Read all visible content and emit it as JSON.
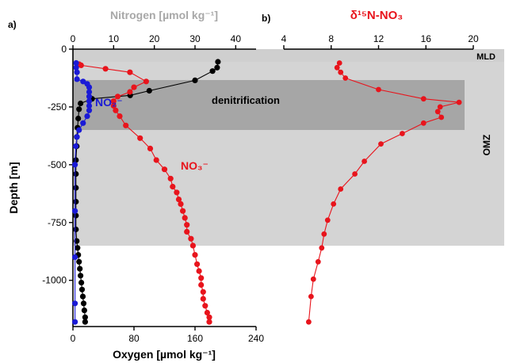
{
  "panel_a": {
    "label": "a)",
    "top_axis_title": "Nitrogen [µmol kg⁻¹]",
    "bottom_axis_title": "Oxygen [µmol kg⁻¹]",
    "y_axis_title": "Depth [m]",
    "region_labels": {
      "mld": "MLD",
      "denitrification": "denitrification",
      "omz": "OMZ"
    },
    "series_labels": {
      "no2": "NO₂⁻",
      "no3": "NO₃⁻"
    }
  },
  "panel_b": {
    "label": "b)",
    "top_axis_title": "δ¹⁵N-NO₃"
  },
  "colors": {
    "oxygen": "#000000",
    "nitrate": "#e8141c",
    "nitrite": "#1a1ad6",
    "delta15n": "#e8141c",
    "axis_title_nitrogen": "#a8a8a8",
    "omz_band": "#d4d4d4",
    "denitrification_band": "#a6a6a6"
  },
  "chart_data": [
    {
      "type": "line",
      "panel": "a",
      "y_axis": {
        "label": "Depth [m]",
        "range": [
          -1200,
          0
        ],
        "ticks": [
          0,
          -250,
          -500,
          -750,
          -1000
        ],
        "tick_labels": [
          "0",
          "-250",
          "-500",
          "-750",
          "-1000"
        ]
      },
      "x_axis_top": {
        "label": "Nitrogen [µmol kg⁻¹]",
        "range": [
          0,
          45
        ],
        "ticks": [
          0,
          10,
          20,
          30,
          40
        ],
        "tick_labels": [
          "0",
          "10",
          "20",
          "30",
          "40"
        ]
      },
      "x_axis_bottom": {
        "label": "Oxygen [µmol kg⁻¹]",
        "range": [
          0,
          240
        ],
        "ticks": [
          0,
          80,
          160,
          240
        ],
        "tick_labels": [
          "0",
          "80",
          "160",
          "240"
        ]
      },
      "bands": [
        {
          "label": "MLD",
          "depth_range": [
            -10,
            -60
          ]
        },
        {
          "label": "denitrification",
          "depth_range": [
            -130,
            -350
          ]
        },
        {
          "label": "OMZ",
          "depth_range": [
            -60,
            -850
          ]
        }
      ],
      "series": [
        {
          "name": "NO₃⁻",
          "axis": "top",
          "points": [
            [
              1.5,
              -65
            ],
            [
              2,
              -70
            ],
            [
              8,
              -85
            ],
            [
              14,
              -100
            ],
            [
              18,
              -140
            ],
            [
              15,
              -165
            ],
            [
              14,
              -185
            ],
            [
              11,
              -205
            ],
            [
              10,
              -225
            ],
            [
              10,
              -245
            ],
            [
              10.5,
              -265
            ],
            [
              11.5,
              -290
            ],
            [
              13,
              -330
            ],
            [
              16.5,
              -385
            ],
            [
              19,
              -430
            ],
            [
              20.5,
              -480
            ],
            [
              22.5,
              -520
            ],
            [
              24,
              -560
            ],
            [
              24.5,
              -595
            ],
            [
              25.5,
              -620
            ],
            [
              26,
              -650
            ],
            [
              26.5,
              -670
            ],
            [
              27,
              -700
            ],
            [
              27.5,
              -730
            ],
            [
              28,
              -760
            ],
            [
              28,
              -790
            ],
            [
              29,
              -820
            ],
            [
              29.5,
              -850
            ],
            [
              30,
              -890
            ],
            [
              30.5,
              -930
            ],
            [
              31,
              -960
            ],
            [
              31.5,
              -990
            ],
            [
              31.5,
              -1020
            ],
            [
              32,
              -1050
            ],
            [
              32,
              -1080
            ],
            [
              32.5,
              -1110
            ],
            [
              33,
              -1140
            ],
            [
              33.5,
              -1160
            ],
            [
              33.5,
              -1180
            ]
          ]
        },
        {
          "name": "NO₂⁻",
          "axis": "top",
          "points": [
            [
              0.8,
              -60
            ],
            [
              0.8,
              -80
            ],
            [
              1,
              -100
            ],
            [
              1,
              -130
            ],
            [
              2.5,
              -140
            ],
            [
              3.5,
              -150
            ],
            [
              4,
              -165
            ],
            [
              4,
              -185
            ],
            [
              4,
              -205
            ],
            [
              4,
              -225
            ],
            [
              4,
              -245
            ],
            [
              4,
              -265
            ],
            [
              3.5,
              -290
            ],
            [
              2.5,
              -320
            ],
            [
              1.5,
              -350
            ],
            [
              1,
              -380
            ],
            [
              0.7,
              -420
            ],
            [
              0.5,
              -500
            ],
            [
              0.5,
              -700
            ],
            [
              0.5,
              -900
            ],
            [
              0.5,
              -1100
            ],
            [
              0.5,
              -1180
            ]
          ]
        },
        {
          "name": "O₂",
          "axis": "bottom",
          "points": [
            [
              190,
              -55
            ],
            [
              189,
              -80
            ],
            [
              183,
              -95
            ],
            [
              160,
              -135
            ],
            [
              100,
              -180
            ],
            [
              75,
              -200
            ],
            [
              25,
              -215
            ],
            [
              10,
              -235
            ],
            [
              8,
              -260
            ],
            [
              7,
              -300
            ],
            [
              6,
              -340
            ],
            [
              5,
              -380
            ],
            [
              5,
              -420
            ],
            [
              4,
              -480
            ],
            [
              4,
              -540
            ],
            [
              4,
              -600
            ],
            [
              4,
              -660
            ],
            [
              4,
              -720
            ],
            [
              4,
              -780
            ],
            [
              5,
              -830
            ],
            [
              6,
              -860
            ],
            [
              7,
              -890
            ],
            [
              8,
              -920
            ],
            [
              9,
              -950
            ],
            [
              10,
              -980
            ],
            [
              11,
              -1010
            ],
            [
              12,
              -1040
            ],
            [
              13,
              -1070
            ],
            [
              14,
              -1100
            ],
            [
              15,
              -1130
            ],
            [
              16,
              -1160
            ],
            [
              16,
              -1180
            ]
          ]
        }
      ]
    },
    {
      "type": "line",
      "panel": "b",
      "y_axis": {
        "range": [
          -1200,
          0
        ]
      },
      "x_axis_top": {
        "label": "δ¹⁵N-NO₃",
        "range": [
          4,
          20
        ],
        "ticks": [
          4,
          8,
          12,
          16,
          20
        ],
        "tick_labels": [
          "4",
          "8",
          "12",
          "16",
          "20"
        ]
      },
      "series": [
        {
          "name": "δ¹⁵N-NO₃",
          "points": [
            [
              8.7,
              -60
            ],
            [
              8.5,
              -80
            ],
            [
              8.8,
              -100
            ],
            [
              9.2,
              -125
            ],
            [
              12,
              -175
            ],
            [
              15.8,
              -215
            ],
            [
              18.8,
              -230
            ],
            [
              17.2,
              -250
            ],
            [
              17,
              -270
            ],
            [
              17.3,
              -295
            ],
            [
              15.8,
              -320
            ],
            [
              14,
              -365
            ],
            [
              12.2,
              -410
            ],
            [
              10.8,
              -485
            ],
            [
              10,
              -540
            ],
            [
              8.8,
              -605
            ],
            [
              8.2,
              -670
            ],
            [
              7.7,
              -740
            ],
            [
              7.4,
              -800
            ],
            [
              7.2,
              -860
            ],
            [
              6.9,
              -920
            ],
            [
              6.5,
              -995
            ],
            [
              6.3,
              -1070
            ],
            [
              6.1,
              -1180
            ]
          ]
        }
      ]
    }
  ]
}
